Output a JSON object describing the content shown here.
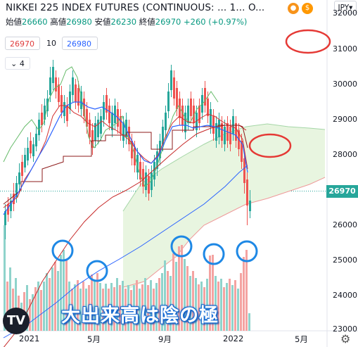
{
  "header": {
    "title": "NIKKEI 225 INDEX FUTURES (CONTINUOUS: ...",
    "interval": "1...",
    "exchange": "O...",
    "ohlc": {
      "open_label": "始値",
      "open": "26660",
      "high_label": "高値",
      "high": "26980",
      "low_label": "安値",
      "low": "26230",
      "close_label": "終値",
      "close": "26970",
      "change": "+260 (+0.97%)"
    },
    "currency": "JPY"
  },
  "indicators": {
    "ma_red_value": "26970",
    "length": "10",
    "ma_blue_value": "26980",
    "collapse_count": "4"
  },
  "price_axis": {
    "labels": [
      "32000",
      "31000",
      "30000",
      "29000",
      "28000",
      "27000",
      "26000",
      "25000",
      "24000",
      "23000"
    ],
    "current_price": "26970"
  },
  "time_axis": {
    "labels": [
      "2021",
      "5月",
      "9月",
      "2022",
      "5月"
    ]
  },
  "annotation": {
    "caption": "大出来高は陰の極"
  },
  "logo_text": "TV",
  "colors": {
    "up": "#26a69a",
    "down": "#ef5350",
    "ma_blue": "#2962ff",
    "ma_red": "#c62828",
    "span_green": "#66bb6a",
    "cloud": "#e8f5e0",
    "circle_blue": "#1e88e5",
    "circle_red": "#e53935"
  },
  "chart_data": {
    "type": "candlestick",
    "series": [
      {
        "name": "",
        "values": [
          27600,
          27800,
          28100,
          28600,
          28900,
          29300,
          29600,
          29900,
          30200,
          29800,
          29400,
          29000,
          28800,
          29200,
          29500,
          29700,
          29300,
          29000,
          28800,
          28600,
          28900,
          29100,
          28700,
          28300,
          28000,
          28500,
          28900,
          28700,
          28300,
          27800,
          27900,
          28100,
          28400,
          28800,
          29200,
          29600,
          29900,
          30200,
          30100,
          29800,
          29300,
          29000,
          28800,
          28600,
          28900,
          29000,
          28700,
          28400,
          28600,
          28900,
          28800,
          28300,
          27800,
          27000,
          26600,
          26970
        ]
      }
    ]
  }
}
